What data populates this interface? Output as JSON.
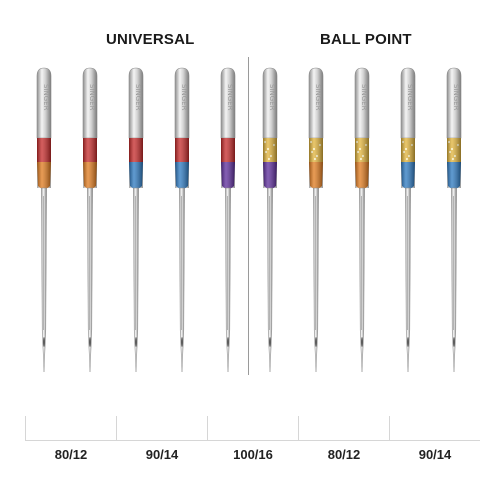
{
  "groups": {
    "universal": "UNIVERSAL",
    "ballpoint": "BALL POINT"
  },
  "brand_engraving": "SINGER",
  "needles": [
    {
      "group": "universal",
      "top_color": "#c62828",
      "bottom_color": "#e07a1c",
      "glitter": false
    },
    {
      "group": "universal",
      "top_color": "#c62828",
      "bottom_color": "#e07a1c",
      "glitter": false
    },
    {
      "group": "universal",
      "top_color": "#c62828",
      "bottom_color": "#2a78c0",
      "glitter": false
    },
    {
      "group": "universal",
      "top_color": "#c62828",
      "bottom_color": "#2a78c0",
      "glitter": false
    },
    {
      "group": "universal",
      "top_color": "#c62828",
      "bottom_color": "#5b2a9a",
      "glitter": false
    },
    {
      "group": "ballpoint",
      "top_color": "#e2b43a",
      "bottom_color": "#5b2a9a",
      "glitter": true
    },
    {
      "group": "ballpoint",
      "top_color": "#e2b43a",
      "bottom_color": "#e07a1c",
      "glitter": true
    },
    {
      "group": "ballpoint",
      "top_color": "#e2b43a",
      "bottom_color": "#e07a1c",
      "glitter": true
    },
    {
      "group": "ballpoint",
      "top_color": "#e2b43a",
      "bottom_color": "#2a78c0",
      "glitter": true
    },
    {
      "group": "ballpoint",
      "top_color": "#e2b43a",
      "bottom_color": "#2a78c0",
      "glitter": true
    }
  ],
  "sizes": [
    "80/12",
    "90/14",
    "100/16",
    "80/12",
    "90/14"
  ]
}
